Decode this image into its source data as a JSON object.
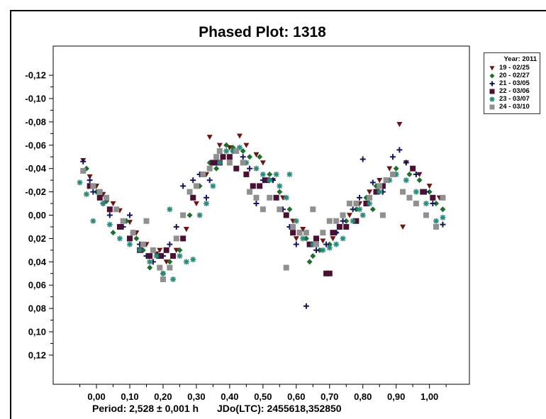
{
  "chart_data": {
    "type": "scatter",
    "title": "Phased Plot: 1318",
    "footer_period": "Period: 2,528 ± 0,001 h",
    "footer_epoch": "JDo(LTC): 2455618,352850",
    "xlim": [
      -0.13,
      1.12
    ],
    "ylim": [
      -0.145,
      0.145
    ],
    "y_inverted": true,
    "grid": false,
    "legend_position": "outside-top-right",
    "legend_title": "Year: 2011",
    "x_ticks": [
      0.0,
      0.1,
      0.2,
      0.3,
      0.4,
      0.5,
      0.6,
      0.7,
      0.8,
      0.9,
      1.0
    ],
    "x_tick_labels": [
      "0,00",
      "0,10",
      "0,20",
      "0,30",
      "0,40",
      "0,50",
      "0,60",
      "0,70",
      "0,80",
      "0,90",
      "1,00"
    ],
    "y_ticks": [
      -0.12,
      -0.1,
      -0.08,
      -0.06,
      -0.04,
      -0.02,
      0.0,
      0.02,
      0.04,
      0.06,
      0.08,
      0.1,
      0.12
    ],
    "y_tick_labels": [
      "-0,12",
      "-0,10",
      "-0,08",
      "-0,06",
      "-0,04",
      "-0,02",
      "0,00",
      "0,02",
      "0,04",
      "0,06",
      "0,08",
      "0,10",
      "0,12"
    ],
    "series": [
      {
        "name": "19 - 02/25",
        "color": "#6b1414",
        "marker": "triangle-down",
        "points": [
          [
            -0.04,
            -0.047
          ],
          [
            -0.02,
            -0.033
          ],
          [
            0.0,
            -0.025
          ],
          [
            0.02,
            -0.018
          ],
          [
            0.05,
            -0.01
          ],
          [
            0.07,
            -0.004
          ],
          [
            0.1,
            0.006
          ],
          [
            0.12,
            0.015
          ],
          [
            0.15,
            0.025
          ],
          [
            0.18,
            0.033
          ],
          [
            0.21,
            0.04
          ],
          [
            0.24,
            0.03
          ],
          [
            0.27,
            0.012
          ],
          [
            0.3,
            -0.01
          ],
          [
            0.33,
            -0.035
          ],
          [
            0.34,
            -0.067
          ],
          [
            0.37,
            -0.06
          ],
          [
            0.4,
            -0.058
          ],
          [
            0.43,
            -0.068
          ],
          [
            0.45,
            -0.06
          ],
          [
            0.48,
            -0.052
          ],
          [
            0.5,
            -0.045
          ],
          [
            0.53,
            -0.03
          ],
          [
            0.56,
            -0.015
          ],
          [
            0.59,
            0.005
          ],
          [
            0.62,
            0.012
          ],
          [
            0.65,
            0.025
          ],
          [
            0.68,
            0.022
          ],
          [
            0.71,
            0.02
          ],
          [
            0.73,
            0.01
          ],
          [
            0.76,
            0.0
          ],
          [
            0.79,
            -0.01
          ],
          [
            0.82,
            -0.02
          ],
          [
            0.85,
            -0.03
          ],
          [
            0.88,
            -0.04
          ],
          [
            0.91,
            -0.078
          ],
          [
            0.93,
            -0.045
          ],
          [
            0.95,
            -0.04
          ],
          [
            0.97,
            -0.035
          ],
          [
            1.0,
            -0.025
          ],
          [
            1.03,
            -0.015
          ],
          [
            0.42,
            -0.055
          ],
          [
            0.6,
            0.02
          ],
          [
            0.19,
            0.03
          ],
          [
            0.92,
            0.01
          ]
        ]
      },
      {
        "name": "20 - 02/27",
        "color": "#1e6e2e",
        "marker": "diamond",
        "points": [
          [
            -0.03,
            -0.04
          ],
          [
            0.0,
            -0.02
          ],
          [
            0.03,
            -0.012
          ],
          [
            0.06,
            -0.005
          ],
          [
            0.09,
            0.005
          ],
          [
            0.12,
            0.02
          ],
          [
            0.14,
            0.03
          ],
          [
            0.16,
            0.045
          ],
          [
            0.19,
            0.045
          ],
          [
            0.22,
            0.04
          ],
          [
            0.25,
            0.03
          ],
          [
            0.28,
            0.0
          ],
          [
            0.31,
            -0.025
          ],
          [
            0.34,
            -0.045
          ],
          [
            0.37,
            -0.055
          ],
          [
            0.39,
            -0.06
          ],
          [
            0.41,
            -0.058
          ],
          [
            0.44,
            -0.055
          ],
          [
            0.46,
            -0.05
          ],
          [
            0.49,
            -0.05
          ],
          [
            0.52,
            -0.035
          ],
          [
            0.55,
            -0.02
          ],
          [
            0.58,
            -0.005
          ],
          [
            0.61,
            0.015
          ],
          [
            0.63,
            0.02
          ],
          [
            0.65,
            0.035
          ],
          [
            0.67,
            0.03
          ],
          [
            0.7,
            0.025
          ],
          [
            0.72,
            0.015
          ],
          [
            0.75,
            0.005
          ],
          [
            0.78,
            -0.005
          ],
          [
            0.81,
            -0.015
          ],
          [
            0.84,
            -0.025
          ],
          [
            0.87,
            -0.03
          ],
          [
            0.9,
            -0.04
          ],
          [
            0.94,
            -0.035
          ],
          [
            0.97,
            -0.03
          ],
          [
            1.0,
            -0.02
          ],
          [
            1.02,
            -0.01
          ],
          [
            0.05,
            0.015
          ],
          [
            0.2,
            0.05
          ],
          [
            0.64,
            0.04
          ],
          [
            0.83,
            -0.005
          ],
          [
            0.36,
            -0.04
          ],
          [
            1.04,
            -0.005
          ]
        ]
      },
      {
        "name": "21 - 03/05",
        "color": "#15155e",
        "marker": "plus",
        "points": [
          [
            -0.04,
            -0.046
          ],
          [
            -0.02,
            -0.03
          ],
          [
            -0.01,
            -0.02
          ],
          [
            0.02,
            -0.01
          ],
          [
            0.04,
            0.0
          ],
          [
            0.08,
            0.01
          ],
          [
            0.1,
            0.0
          ],
          [
            0.11,
            0.015
          ],
          [
            0.13,
            0.025
          ],
          [
            0.15,
            0.035
          ],
          [
            0.17,
            0.04
          ],
          [
            0.2,
            0.035
          ],
          [
            0.22,
            0.025
          ],
          [
            0.24,
            0.01
          ],
          [
            0.26,
            -0.025
          ],
          [
            0.29,
            -0.03
          ],
          [
            0.31,
            -0.035
          ],
          [
            0.34,
            -0.03
          ],
          [
            0.36,
            -0.045
          ],
          [
            0.38,
            -0.05
          ],
          [
            0.41,
            -0.055
          ],
          [
            0.44,
            -0.05
          ],
          [
            0.46,
            -0.04
          ],
          [
            0.5,
            -0.03
          ],
          [
            0.53,
            -0.03
          ],
          [
            0.56,
            -0.005
          ],
          [
            0.58,
            0.01
          ],
          [
            0.6,
            0.025
          ],
          [
            0.63,
            0.078
          ],
          [
            0.66,
            0.03
          ],
          [
            0.69,
            0.025
          ],
          [
            0.72,
            0.015
          ],
          [
            0.74,
            0.005
          ],
          [
            0.77,
            -0.005
          ],
          [
            0.79,
            -0.015
          ],
          [
            0.8,
            -0.048
          ],
          [
            0.83,
            -0.028
          ],
          [
            0.86,
            -0.02
          ],
          [
            0.89,
            -0.05
          ],
          [
            0.91,
            -0.056
          ],
          [
            0.93,
            -0.045
          ],
          [
            0.96,
            -0.035
          ],
          [
            0.99,
            -0.02
          ],
          [
            1.01,
            -0.01
          ],
          [
            1.04,
            0.008
          ],
          [
            0.33,
            -0.015
          ],
          [
            0.48,
            -0.01
          ]
        ]
      },
      {
        "name": "22 - 03/06",
        "color": "#4a1132",
        "marker": "square",
        "points": [
          [
            -0.02,
            -0.025
          ],
          [
            0.01,
            -0.015
          ],
          [
            0.04,
            -0.005
          ],
          [
            0.07,
            0.01
          ],
          [
            0.1,
            0.02
          ],
          [
            0.13,
            0.03
          ],
          [
            0.16,
            0.035
          ],
          [
            0.19,
            0.035
          ],
          [
            0.21,
            0.03
          ],
          [
            0.23,
            0.035
          ],
          [
            0.26,
            0.02
          ],
          [
            0.29,
            -0.015
          ],
          [
            0.32,
            -0.035
          ],
          [
            0.35,
            -0.045
          ],
          [
            0.37,
            -0.045
          ],
          [
            0.4,
            -0.05
          ],
          [
            0.42,
            -0.04
          ],
          [
            0.45,
            -0.035
          ],
          [
            0.47,
            -0.025
          ],
          [
            0.49,
            -0.025
          ],
          [
            0.51,
            -0.03
          ],
          [
            0.54,
            -0.015
          ],
          [
            0.57,
            0.0
          ],
          [
            0.59,
            0.015
          ],
          [
            0.61,
            0.015
          ],
          [
            0.64,
            0.025
          ],
          [
            0.66,
            0.02
          ],
          [
            0.69,
            0.05
          ],
          [
            0.71,
            0.015
          ],
          [
            0.73,
            0.01
          ],
          [
            0.75,
            0.01
          ],
          [
            0.78,
            0.005
          ],
          [
            0.81,
            -0.01
          ],
          [
            0.84,
            -0.02
          ],
          [
            0.86,
            -0.025
          ],
          [
            0.95,
            -0.04
          ],
          [
            0.98,
            -0.02
          ],
          [
            1.01,
            -0.015
          ],
          [
            0.38,
            -0.05
          ],
          [
            0.7,
            0.05
          ]
        ]
      },
      {
        "name": "23 - 03/07",
        "color": "#2a8a7a",
        "marker": "asterisk",
        "points": [
          [
            -0.05,
            -0.028
          ],
          [
            -0.03,
            -0.018
          ],
          [
            -0.01,
            0.005
          ],
          [
            0.02,
            -0.01
          ],
          [
            0.04,
            0.008
          ],
          [
            0.07,
            0.02
          ],
          [
            0.1,
            0.025
          ],
          [
            0.13,
            0.03
          ],
          [
            0.16,
            0.04
          ],
          [
            0.18,
            0.035
          ],
          [
            0.2,
            0.05
          ],
          [
            0.22,
            -0.005
          ],
          [
            0.23,
            0.055
          ],
          [
            0.25,
            0.035
          ],
          [
            0.27,
            0.04
          ],
          [
            0.29,
            0.038
          ],
          [
            0.31,
            0.0
          ],
          [
            0.33,
            -0.01
          ],
          [
            0.35,
            -0.025
          ],
          [
            0.37,
            -0.045
          ],
          [
            0.39,
            -0.055
          ],
          [
            0.41,
            -0.055
          ],
          [
            0.43,
            -0.058
          ],
          [
            0.45,
            -0.045
          ],
          [
            0.48,
            -0.04
          ],
          [
            0.5,
            -0.035
          ],
          [
            0.52,
            -0.03
          ],
          [
            0.55,
            -0.025
          ],
          [
            0.57,
            -0.015
          ],
          [
            0.6,
            0.005
          ],
          [
            0.62,
            0.02
          ],
          [
            0.65,
            0.025
          ],
          [
            0.68,
            0.03
          ],
          [
            0.7,
            0.028
          ],
          [
            0.72,
            0.025
          ],
          [
            0.74,
            0.02
          ],
          [
            0.77,
            0.005
          ],
          [
            0.79,
            -0.005
          ],
          [
            0.82,
            -0.01
          ],
          [
            0.85,
            -0.02
          ],
          [
            0.88,
            -0.03
          ],
          [
            0.9,
            -0.035
          ],
          [
            0.93,
            -0.03
          ],
          [
            0.96,
            -0.02
          ],
          [
            0.99,
            -0.01
          ],
          [
            1.02,
            0.005
          ],
          [
            1.04,
            0.002
          ],
          [
            0.54,
            -0.035
          ],
          [
            0.58,
            -0.035
          ],
          [
            0.8,
            0.0
          ]
        ]
      },
      {
        "name": "24 - 03/10",
        "color": "#909090",
        "marker": "square",
        "points": [
          [
            -0.04,
            -0.038
          ],
          [
            -0.01,
            -0.025
          ],
          [
            0.01,
            -0.02
          ],
          [
            0.03,
            -0.015
          ],
          [
            0.06,
            -0.005
          ],
          [
            0.08,
            0.005
          ],
          [
            0.11,
            0.015
          ],
          [
            0.14,
            0.025
          ],
          [
            0.17,
            0.03
          ],
          [
            0.19,
            0.045
          ],
          [
            0.2,
            0.055
          ],
          [
            0.22,
            0.045
          ],
          [
            0.24,
            0.02
          ],
          [
            0.26,
            0.0
          ],
          [
            0.28,
            -0.02
          ],
          [
            0.3,
            -0.025
          ],
          [
            0.32,
            -0.035
          ],
          [
            0.34,
            -0.04
          ],
          [
            0.36,
            -0.05
          ],
          [
            0.37,
            -0.055
          ],
          [
            0.4,
            -0.045
          ],
          [
            0.42,
            -0.055
          ],
          [
            0.44,
            -0.045
          ],
          [
            0.46,
            -0.02
          ],
          [
            0.48,
            -0.015
          ],
          [
            0.5,
            -0.005
          ],
          [
            0.52,
            -0.015
          ],
          [
            0.55,
            -0.005
          ],
          [
            0.57,
            0.045
          ],
          [
            0.59,
            0.01
          ],
          [
            0.61,
            0.015
          ],
          [
            0.63,
            0.015
          ],
          [
            0.66,
            0.025
          ],
          [
            0.68,
            0.015
          ],
          [
            0.7,
            0.005
          ],
          [
            0.72,
            0.005
          ],
          [
            0.74,
            0.0
          ],
          [
            0.76,
            -0.01
          ],
          [
            0.78,
            -0.01
          ],
          [
            0.82,
            -0.015
          ],
          [
            0.85,
            -0.025
          ],
          [
            0.87,
            -0.03
          ],
          [
            0.89,
            -0.035
          ],
          [
            0.92,
            -0.02
          ],
          [
            0.94,
            -0.015
          ],
          [
            0.96,
            -0.01
          ],
          [
            0.99,
            0.0
          ],
          [
            1.02,
            0.01
          ],
          [
            1.04,
            -0.015
          ],
          [
            0.15,
            0.005
          ],
          [
            0.86,
            0.0
          ],
          [
            0.65,
            -0.005
          ]
        ]
      }
    ]
  }
}
